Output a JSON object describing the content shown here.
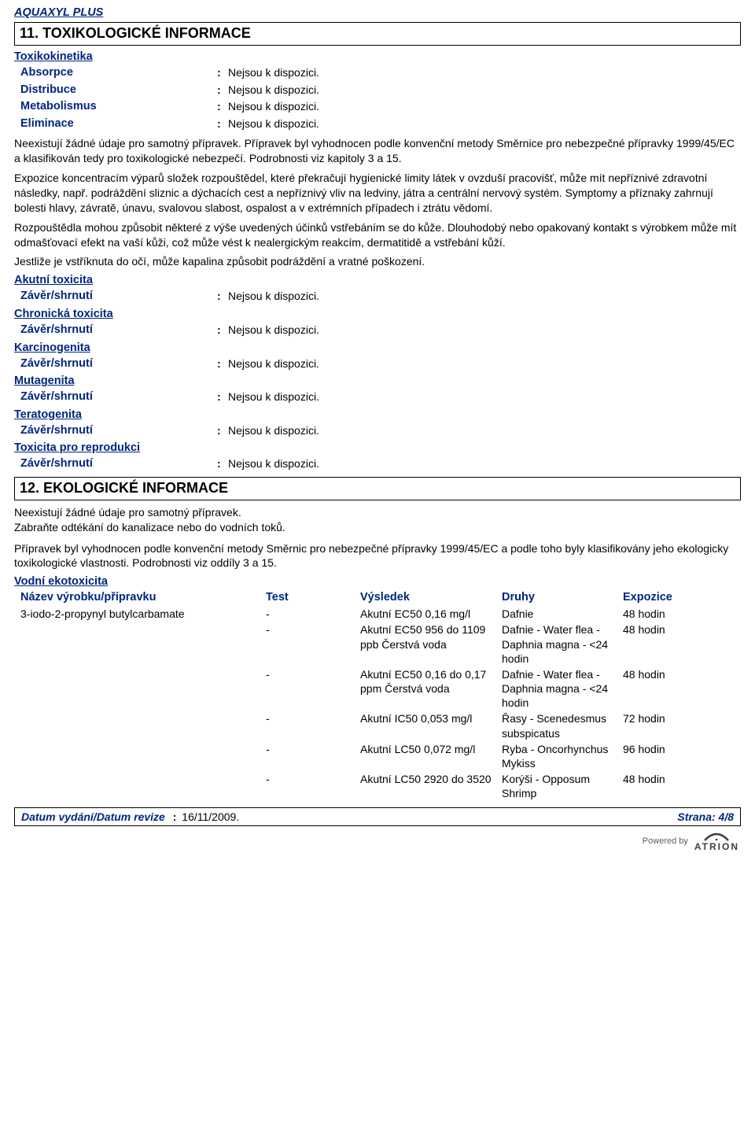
{
  "product_title": "AQUAXYL PLUS",
  "section11": {
    "title": "11. TOXIKOLOGICKÉ INFORMACE",
    "toxicokinetics_heading": "Toxikokinetika",
    "kv": {
      "absorpce_l": "Absorpce",
      "absorpce_v": "Nejsou k dispozici.",
      "distribuce_l": "Distribuce",
      "distribuce_v": "Nejsou k dispozici.",
      "metabolismus_l": "Metabolismus",
      "metabolismus_v": "Nejsou k dispozici.",
      "eliminace_l": "Eliminace",
      "eliminace_v": "Nejsou k dispozici."
    },
    "para1": "Neexistují žádné údaje pro samotný přípravek. Přípravek byl vyhodnocen podle konvenční metody Směrnice pro nebezpečné přípravky 1999/45/EC a klasifikován tedy pro toxikologické nebezpečí. Podrobnosti viz kapitoly 3 a 15.",
    "para2": "Expozice koncentracím výparů složek rozpouštědel, které překračují hygienické limity látek v ovzduší pracovišť, může mít nepříznivé zdravotní následky, např. podráždění sliznic a dýchacích cest a nepříznivý vliv na ledviny, játra a centrální nervový systém. Symptomy a příznaky zahrnují bolesti hlavy, závratě, únavu, svalovou slabost, ospalost a v extrémních případech i ztrátu vědomí.",
    "para3": "Rozpouštědla mohou způsobit některé z výše uvedených účinků vstřebáním se do kůže. Dlouhodobý nebo opakovaný kontakt s výrobkem může mít odmašťovací efekt na vaší kůži, což může vést k nealergickým reakcím, dermatitidě a vstřebání kůží.",
    "para4": "Jestliže je vstříknuta do očí, může kapalina způsobit podráždění a vratné poškození.",
    "groups": [
      {
        "heading": "Akutní toxicita",
        "label": "Závěr/shrnutí",
        "value": "Nejsou k dispozici."
      },
      {
        "heading": "Chronická toxicita",
        "label": "Závěr/shrnutí",
        "value": "Nejsou k dispozici."
      },
      {
        "heading": "Karcinogenita",
        "label": "Závěr/shrnutí",
        "value": "Nejsou k dispozici."
      },
      {
        "heading": "Mutagenita",
        "label": "Závěr/shrnutí",
        "value": "Nejsou k dispozici."
      },
      {
        "heading": "Teratogenita",
        "label": "Závěr/shrnutí",
        "value": "Nejsou k dispozici."
      },
      {
        "heading": "Toxicita pro reprodukci",
        "label": "Závěr/shrnutí",
        "value": "Nejsou k dispozici."
      }
    ]
  },
  "section12": {
    "title": "12. EKOLOGICKÉ INFORMACE",
    "para1": "Neexistují žádné údaje pro samotný přípravek.",
    "para2": "Zabraňte odtékání do kanalizace nebo do vodních toků.",
    "para3": "Přípravek byl vyhodnocen podle konvenční metody Směrnic pro nebezpečné přípravky 1999/45/EC a podle toho byly klasifikovány jeho ekologicky toxikologické vlastnosti. Podrobnosti viz oddíly 3 a 15.",
    "ecotox_heading": "Vodní ekotoxicita",
    "headers": {
      "name": "Název výrobku/přípravku",
      "test": "Test",
      "result": "Výsledek",
      "species": "Druhy",
      "exposure": "Expozice"
    },
    "rows": [
      {
        "name": "3-iodo-2-propynyl butylcarbamate",
        "test": "-",
        "result": "Akutní EC50 0,16 mg/l",
        "species": "Dafnie",
        "exp": "48 hodin"
      },
      {
        "name": "",
        "test": "-",
        "result": "Akutní EC50 956 do 1109 ppb Čerstvá voda",
        "species": "Dafnie - Water flea - Daphnia magna - <24 hodin",
        "exp": "48 hodin"
      },
      {
        "name": "",
        "test": "-",
        "result": "Akutní EC50 0,16 do 0,17 ppm Čerstvá voda",
        "species": "Dafnie - Water flea - Daphnia magna - <24 hodin",
        "exp": "48 hodin"
      },
      {
        "name": "",
        "test": "-",
        "result": "Akutní IC50 0,053 mg/l",
        "species": "Řasy - Scenedesmus subspicatus",
        "exp": "72 hodin"
      },
      {
        "name": "",
        "test": "-",
        "result": "Akutní LC50 0,072 mg/l",
        "species": "Ryba - Oncorhynchus Mykiss",
        "exp": "96 hodin"
      },
      {
        "name": "",
        "test": "-",
        "result": "Akutní LC50 2920 do 3520",
        "species": "Korýši - Opposum Shrimp",
        "exp": "48 hodin"
      }
    ]
  },
  "footer": {
    "label": "Datum vydání/Datum revize",
    "date": "16/11/2009.",
    "page": "Strana: 4/8"
  },
  "powered_by": "Powered by",
  "brand": "ATRION"
}
